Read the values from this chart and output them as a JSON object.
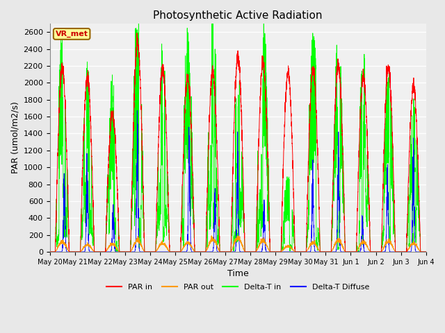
{
  "title": "Photosynthetic Active Radiation",
  "ylabel": "PAR (umol/m2/s)",
  "xlabel": "Time",
  "ylim": [
    0,
    2700
  ],
  "yticks": [
    0,
    200,
    400,
    600,
    800,
    1000,
    1200,
    1400,
    1600,
    1800,
    2000,
    2200,
    2400,
    2600
  ],
  "xtick_labels": [
    "May 20",
    "May 21",
    "May 22",
    "May 23",
    "May 24",
    "May 25",
    "May 26",
    "May 27",
    "May 28",
    "May 29",
    "May 30",
    "May 31",
    "Jun 1",
    "Jun 2",
    "Jun 3",
    "Jun 4"
  ],
  "annotation": "VR_met",
  "annotation_color": "#cc0000",
  "annotation_bg": "#ffff99",
  "annotation_border": "#996600",
  "colors": {
    "PAR_in": "#ff0000",
    "PAR_out": "#ff9900",
    "Delta_T_in": "#00ff00",
    "Delta_T_Diffuse": "#0000ff"
  },
  "legend_labels": [
    "PAR in",
    "PAR out",
    "Delta-T in",
    "Delta-T Diffuse"
  ],
  "bg_color": "#e8e8e8",
  "plot_bg": "#f0f0f0",
  "n_days": 15,
  "pts_per_day": 288
}
